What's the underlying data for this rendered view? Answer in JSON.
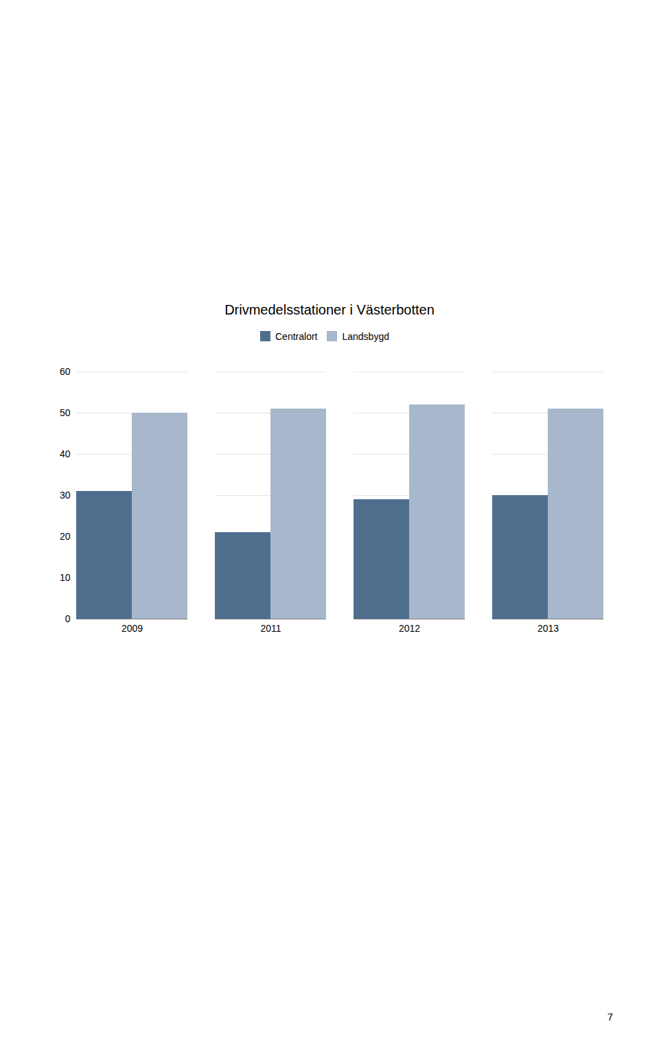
{
  "chart_data": {
    "type": "bar",
    "title": "Drivmedelsstationer i Västerbotten",
    "categories": [
      "2009",
      "2011",
      "2012",
      "2013"
    ],
    "series": [
      {
        "name": "Centralort",
        "color": "#4e6e8e",
        "values": [
          31,
          21,
          29,
          30
        ]
      },
      {
        "name": "Landsbygd",
        "color": "#a8b8cc",
        "values": [
          50,
          51,
          52,
          51
        ]
      }
    ],
    "ylim": [
      0,
      60
    ],
    "yticks": [
      0,
      10,
      20,
      30,
      40,
      50,
      60
    ],
    "grid": true,
    "legend": "top",
    "annotations": [
      "7"
    ]
  }
}
